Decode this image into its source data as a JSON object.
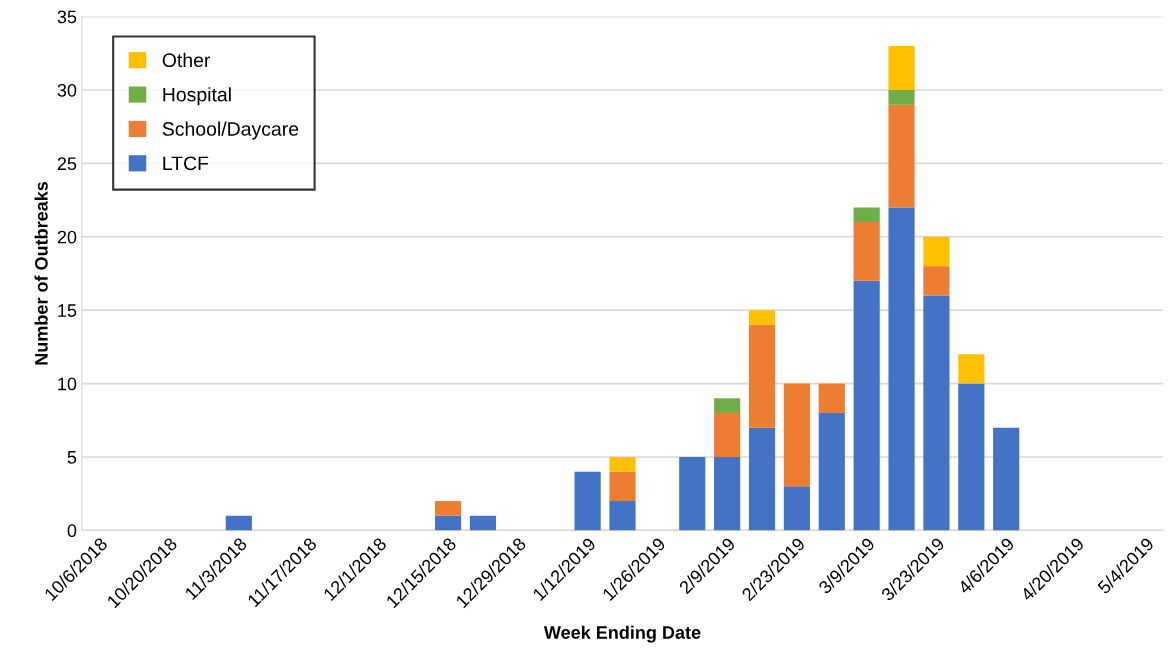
{
  "chart_data": {
    "type": "bar",
    "stacked": true,
    "xlabel": "Week Ending Date",
    "ylabel": "Number of Outbreaks",
    "categories": [
      "10/6/2018",
      null,
      "10/20/2018",
      null,
      "11/3/2018",
      null,
      "11/17/2018",
      null,
      "12/1/2018",
      null,
      "12/15/2018",
      null,
      "12/29/2018",
      null,
      "1/12/2019",
      null,
      "1/26/2019",
      null,
      "2/9/2019",
      null,
      "2/23/2019",
      null,
      "3/9/2019",
      null,
      "3/23/2019",
      null,
      "4/6/2019",
      null,
      "4/20/2019",
      null,
      "5/4/2019"
    ],
    "series": [
      {
        "name": "LTCF",
        "color": "#4472c4",
        "values": [
          0,
          0,
          0,
          0,
          1,
          0,
          0,
          0,
          0,
          0,
          1,
          1,
          0,
          0,
          4,
          2,
          0,
          5,
          5,
          7,
          3,
          8,
          17,
          22,
          16,
          10,
          7,
          0,
          0,
          0,
          0
        ]
      },
      {
        "name": "School/Daycare",
        "color": "#ed7d31",
        "values": [
          0,
          0,
          0,
          0,
          0,
          0,
          0,
          0,
          0,
          0,
          1,
          0,
          0,
          0,
          0,
          2,
          0,
          0,
          3,
          7,
          7,
          2,
          4,
          7,
          2,
          0,
          0,
          0,
          0,
          0,
          0
        ]
      },
      {
        "name": "Hospital",
        "color": "#70ad47",
        "values": [
          0,
          0,
          0,
          0,
          0,
          0,
          0,
          0,
          0,
          0,
          0,
          0,
          0,
          0,
          0,
          0,
          0,
          0,
          1,
          0,
          0,
          0,
          1,
          1,
          0,
          0,
          0,
          0,
          0,
          0,
          0
        ]
      },
      {
        "name": "Other",
        "color": "#ffc000",
        "values": [
          0,
          0,
          0,
          0,
          0,
          0,
          0,
          0,
          0,
          0,
          0,
          0,
          0,
          0,
          0,
          1,
          0,
          0,
          0,
          1,
          0,
          0,
          0,
          3,
          2,
          2,
          0,
          0,
          0,
          0,
          0
        ]
      }
    ],
    "ylim": [
      0,
      35
    ],
    "yticks": [
      0,
      5,
      10,
      15,
      20,
      25,
      30,
      35
    ],
    "grid": "y",
    "legend": "top left"
  }
}
